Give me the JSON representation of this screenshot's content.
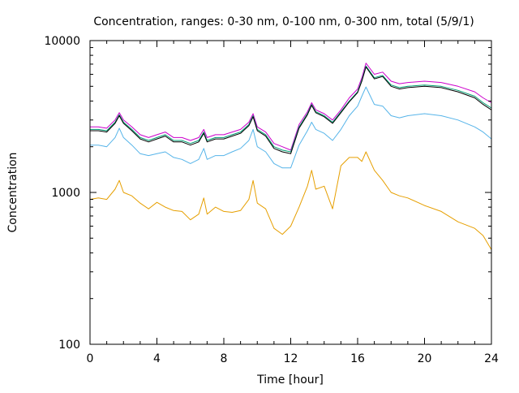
{
  "chart_data": {
    "type": "line",
    "title": "Concentration, ranges: 0-30 nm, 0-100 nm, 0-300 nm, total (5/9/1)",
    "xlabel": "Time [hour]",
    "ylabel": "Concentration",
    "xlim": [
      0,
      24
    ],
    "ylim": [
      100,
      10000
    ],
    "y_scale": "log",
    "x_ticks": [
      0,
      4,
      8,
      12,
      16,
      20,
      24
    ],
    "y_ticks": [
      100,
      1000,
      10000
    ],
    "grid": false,
    "legend": "none",
    "x": [
      0,
      0.5,
      1,
      1.5,
      1.75,
      2,
      2.5,
      3,
      3.5,
      4,
      4.5,
      5,
      5.5,
      6,
      6.5,
      6.8,
      7,
      7.5,
      8,
      8.5,
      9,
      9.5,
      9.75,
      10,
      10.5,
      11,
      11.5,
      12,
      12.5,
      13,
      13.25,
      13.5,
      14,
      14.5,
      15,
      15.5,
      16,
      16.25,
      16.5,
      17,
      17.5,
      18,
      18.5,
      19,
      20,
      21,
      22,
      23,
      23.5,
      24
    ],
    "series": [
      {
        "color": "#cc00cc",
        "values": [
          2700,
          2700,
          2650,
          3000,
          3350,
          3000,
          2700,
          2400,
          2300,
          2400,
          2500,
          2300,
          2300,
          2200,
          2300,
          2600,
          2300,
          2400,
          2400,
          2500,
          2600,
          2900,
          3300,
          2700,
          2500,
          2100,
          2000,
          1900,
          2800,
          3400,
          3900,
          3500,
          3300,
          3000,
          3500,
          4200,
          4800,
          5700,
          7100,
          6000,
          6200,
          5400,
          5200,
          5300,
          5400,
          5300,
          5000,
          4600,
          4200,
          3900
        ]
      },
      {
        "color": "#009e73",
        "values": [
          2600,
          2600,
          2550,
          2900,
          3250,
          2900,
          2600,
          2300,
          2200,
          2300,
          2400,
          2200,
          2200,
          2100,
          2200,
          2500,
          2200,
          2300,
          2300,
          2400,
          2500,
          2800,
          3200,
          2600,
          2400,
          2000,
          1900,
          1850,
          2700,
          3300,
          3800,
          3400,
          3200,
          2900,
          3400,
          4000,
          4600,
          5500,
          6800,
          5700,
          5900,
          5100,
          4900,
          5000,
          5100,
          5000,
          4700,
          4300,
          3900,
          3600
        ]
      },
      {
        "color": "#000000",
        "values": [
          2550,
          2550,
          2500,
          2850,
          3200,
          2850,
          2550,
          2250,
          2150,
          2250,
          2350,
          2150,
          2150,
          2050,
          2150,
          2450,
          2150,
          2250,
          2250,
          2350,
          2450,
          2750,
          3150,
          2550,
          2350,
          1950,
          1850,
          1800,
          2650,
          3250,
          3750,
          3350,
          3150,
          2850,
          3350,
          3950,
          4550,
          5400,
          6700,
          5600,
          5800,
          5000,
          4800,
          4900,
          5000,
          4900,
          4600,
          4200,
          3800,
          3500
        ]
      },
      {
        "color": "#56b4e9",
        "values": [
          2050,
          2050,
          2000,
          2300,
          2650,
          2300,
          2050,
          1800,
          1750,
          1800,
          1850,
          1700,
          1650,
          1550,
          1650,
          1950,
          1650,
          1750,
          1750,
          1850,
          1950,
          2200,
          2600,
          2000,
          1850,
          1550,
          1450,
          1450,
          2050,
          2550,
          2900,
          2600,
          2450,
          2200,
          2600,
          3200,
          3700,
          4300,
          4950,
          3800,
          3700,
          3200,
          3100,
          3200,
          3300,
          3200,
          3000,
          2700,
          2500,
          2250
        ]
      },
      {
        "color": "#e69f00",
        "values": [
          900,
          920,
          900,
          1050,
          1200,
          1000,
          950,
          850,
          780,
          860,
          800,
          760,
          750,
          660,
          720,
          920,
          720,
          800,
          750,
          740,
          760,
          900,
          1200,
          850,
          780,
          580,
          530,
          600,
          800,
          1100,
          1400,
          1050,
          1100,
          780,
          1500,
          1700,
          1700,
          1600,
          1850,
          1400,
          1200,
          1000,
          950,
          920,
          820,
          750,
          640,
          580,
          520,
          420
        ]
      }
    ]
  }
}
